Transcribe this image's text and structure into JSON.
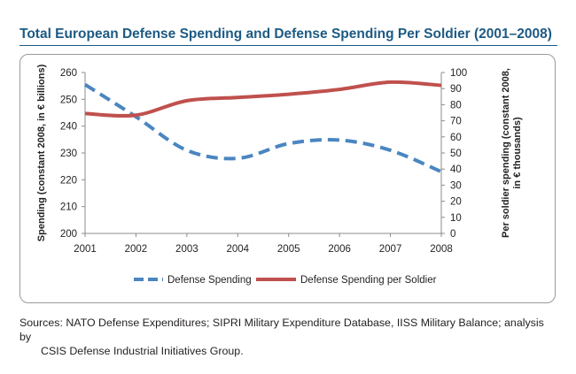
{
  "title": "Total European Defense Spending and Defense Spending Per Soldier (2001–2008)",
  "sources": {
    "line1": "Sources: NATO Defense Expenditures; SIPRI Military Expenditure Database, IISS Military Balance; analysis by",
    "line2": "CSIS Defense Industrial Initiatives Group."
  },
  "chart_data": {
    "type": "line",
    "title": "Total European Defense Spending and Defense Spending Per Soldier (2001–2008)",
    "xlabel": "",
    "x": [
      "2001",
      "2002",
      "2003",
      "2004",
      "2005",
      "2006",
      "2007",
      "2008"
    ],
    "ylabel_left": "Spending (constant 2008, in € billions)",
    "ylabel_right_line1": "Per soldier spending (constant 2008,",
    "ylabel_right_line2": "in € thousands)",
    "ylim_left": [
      200,
      260
    ],
    "yticks_left": [
      "200",
      "210",
      "220",
      "230",
      "240",
      "250",
      "260"
    ],
    "ylim_right": [
      0,
      100
    ],
    "yticks_right": [
      "0",
      "10",
      "20",
      "30",
      "40",
      "50",
      "60",
      "70",
      "80",
      "90",
      "100"
    ],
    "grid": false,
    "legend": "bottom",
    "series": [
      {
        "name": "Defense Spending",
        "axis": "left",
        "style": "dashed",
        "color": "#4a86c0",
        "values": [
          255.5,
          243.5,
          231,
          228,
          233.5,
          234.8,
          231,
          223
        ]
      },
      {
        "name": "Defense Spending per Soldier",
        "axis": "right",
        "style": "solid",
        "color": "#c0504d",
        "values": [
          74.5,
          73.5,
          82.5,
          84.5,
          86.5,
          89.5,
          94,
          92
        ]
      }
    ]
  }
}
